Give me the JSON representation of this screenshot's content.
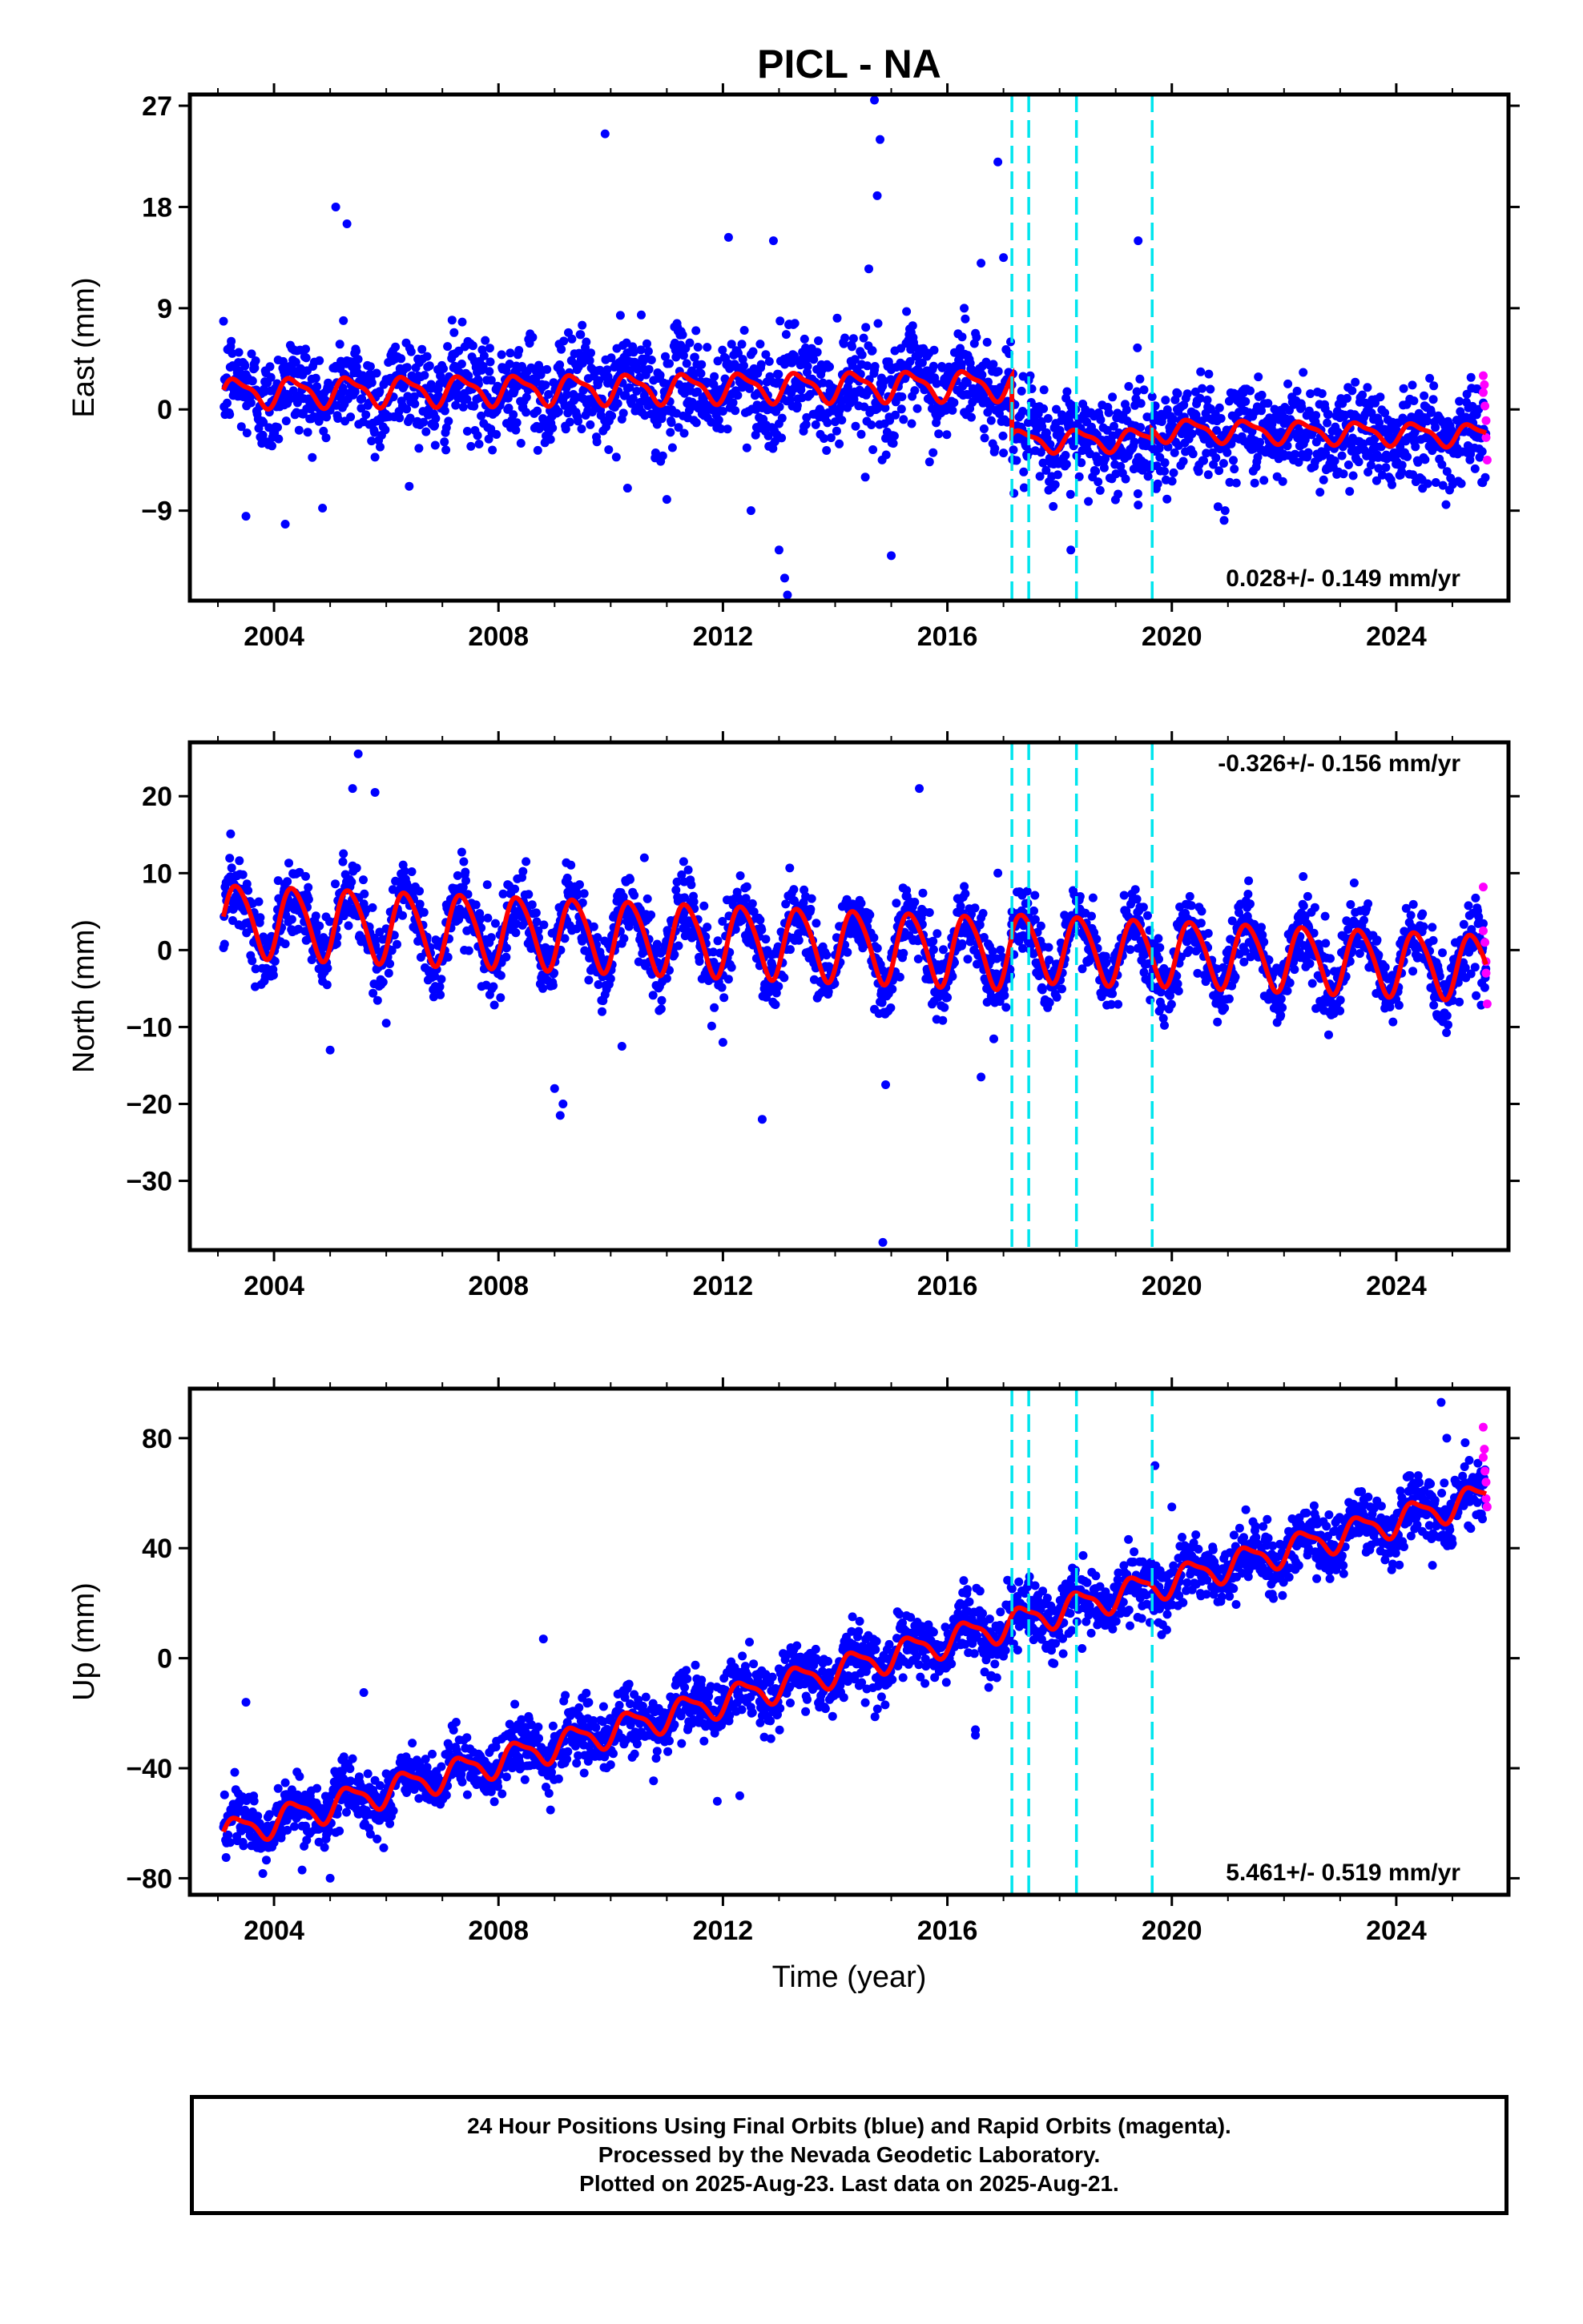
{
  "title": "PICL - NA",
  "colors": {
    "final": "#0000ff",
    "rapid": "#ff00ff",
    "model": "#ff0000",
    "event": "#00e5ee",
    "frame": "#000000"
  },
  "event_lines": [
    2017.15,
    2017.45,
    2018.3,
    2019.65
  ],
  "chart_data": [
    {
      "type": "scatter",
      "component": "east",
      "xlim": [
        2002.5,
        2026.0
      ],
      "ylim": [
        -17,
        28
      ],
      "yticks": [
        -9,
        0,
        9,
        18,
        27
      ],
      "xticks": [
        2004,
        2008,
        2012,
        2016,
        2020,
        2024
      ],
      "ylabel": "East (mm)",
      "rate_label": "0.028+/- 0.149 mm/yr",
      "rate_position": "bottom-right",
      "model": {
        "segments": [
          {
            "x_start": 2003.1,
            "x_end": 2017.15,
            "offset": 1.5,
            "trend": 0.05,
            "annual_amp": 1.2,
            "semiannual_amp": 0.4
          },
          {
            "x_start": 2017.15,
            "x_end": 2019.65,
            "offset": -2.8,
            "trend": 0.05,
            "annual_amp": 0.9,
            "semiannual_amp": 0.3
          },
          {
            "x_start": 2019.65,
            "x_end": 2025.6,
            "offset": -1.8,
            "trend": -0.08,
            "annual_amp": 0.9,
            "semiannual_amp": 0.3
          }
        ]
      },
      "scatter_sigma": 2.2,
      "outliers": [
        [
          2003.5,
          -9.5
        ],
        [
          2004.2,
          -10.2
        ],
        [
          2005.1,
          18.0
        ],
        [
          2005.3,
          16.5
        ],
        [
          2009.9,
          24.5
        ],
        [
          2012.1,
          15.3
        ],
        [
          2012.9,
          15.0
        ],
        [
          2013.0,
          -12.5
        ],
        [
          2013.1,
          -15.0
        ],
        [
          2013.15,
          -16.5
        ],
        [
          2014.7,
          27.5
        ],
        [
          2014.8,
          24.0
        ],
        [
          2014.75,
          19.0
        ],
        [
          2014.6,
          12.5
        ],
        [
          2015.0,
          -13.0
        ],
        [
          2016.9,
          22.0
        ],
        [
          2016.6,
          13.0
        ],
        [
          2017.0,
          13.5
        ],
        [
          2018.2,
          -12.5
        ],
        [
          2019.4,
          15.0
        ],
        [
          2019.4,
          -8.5
        ],
        [
          2010.3,
          -7.0
        ],
        [
          2011.0,
          -8.0
        ],
        [
          2012.5,
          -9.0
        ],
        [
          2016.3,
          9.0
        ]
      ],
      "rapid_points": [
        [
          2025.55,
          3.0
        ],
        [
          2025.55,
          1.5
        ],
        [
          2025.58,
          0.3
        ],
        [
          2025.6,
          -1.0
        ],
        [
          2025.6,
          -2.5
        ],
        [
          2025.62,
          -4.5
        ],
        [
          2025.57,
          2.2
        ]
      ]
    },
    {
      "type": "scatter",
      "component": "north",
      "xlim": [
        2002.5,
        2026.0
      ],
      "ylim": [
        -39,
        27
      ],
      "yticks": [
        -30,
        -20,
        -10,
        0,
        10,
        20
      ],
      "xticks": [
        2004,
        2008,
        2012,
        2016,
        2020,
        2024
      ],
      "ylabel": "North (mm)",
      "rate_label": "-0.326+/- 0.156 mm/yr",
      "rate_position": "top-right",
      "model": {
        "segments": [
          {
            "x_start": 2003.1,
            "x_end": 2017.15,
            "offset": 4.0,
            "trend": -0.3,
            "annual_amp": 4.6,
            "semiannual_amp": 0.6
          },
          {
            "x_start": 2017.15,
            "x_end": 2019.65,
            "offset": 0.5,
            "trend": -0.33,
            "annual_amp": 4.3,
            "semiannual_amp": 0.5
          },
          {
            "x_start": 2019.65,
            "x_end": 2025.6,
            "offset": -0.2,
            "trend": -0.33,
            "annual_amp": 4.2,
            "semiannual_amp": 0.5
          }
        ]
      },
      "scatter_sigma": 2.3,
      "outliers": [
        [
          2005.5,
          25.5
        ],
        [
          2005.4,
          21.0
        ],
        [
          2005.8,
          20.5
        ],
        [
          2005.0,
          -13.0
        ],
        [
          2009.1,
          -21.5
        ],
        [
          2009.15,
          -20.0
        ],
        [
          2009.0,
          -18.0
        ],
        [
          2012.7,
          -22.0
        ],
        [
          2014.85,
          -38.0
        ],
        [
          2015.5,
          21.0
        ],
        [
          2014.9,
          -17.5
        ],
        [
          2016.6,
          -16.5
        ],
        [
          2012.0,
          -12.0
        ],
        [
          2010.2,
          -12.5
        ],
        [
          2006.0,
          -9.5
        ],
        [
          2011.3,
          11.5
        ],
        [
          2010.6,
          12.0
        ],
        [
          2007.8,
          8.5
        ],
        [
          2016.9,
          10.0
        ]
      ],
      "rapid_points": [
        [
          2025.55,
          8.2
        ],
        [
          2025.55,
          2.5
        ],
        [
          2025.58,
          1.0
        ],
        [
          2025.6,
          -1.5
        ],
        [
          2025.6,
          -3.0
        ],
        [
          2025.62,
          -7.0
        ]
      ]
    },
    {
      "type": "scatter",
      "component": "up",
      "xlim": [
        2002.5,
        2026.0
      ],
      "ylim": [
        -86,
        98
      ],
      "yticks": [
        -80,
        -40,
        0,
        40,
        80
      ],
      "xticks": [
        2004,
        2008,
        2012,
        2016,
        2020,
        2024
      ],
      "ylabel": "Up (mm)",
      "xlabel": "Time (year)",
      "rate_label": "5.461+/- 0.519 mm/yr",
      "rate_position": "bottom-right",
      "model": {
        "segments": [
          {
            "x_start": 2003.1,
            "x_end": 2025.6,
            "offset": -64.0,
            "trend": 5.46,
            "annual_amp": 5.0,
            "semiannual_amp": 1.5,
            "ref_year": 2003.1
          }
        ]
      },
      "scatter_sigma": 5.5,
      "outliers": [
        [
          2003.5,
          -16.0
        ],
        [
          2005.6,
          -12.5
        ],
        [
          2008.8,
          7.0
        ],
        [
          2014.5,
          2.0
        ],
        [
          2016.5,
          -28.0
        ],
        [
          2016.5,
          -26.0
        ],
        [
          2019.7,
          70.0
        ],
        [
          2020.0,
          55.0
        ],
        [
          2024.8,
          93.0
        ],
        [
          2024.9,
          80.0
        ],
        [
          2012.3,
          -50.0
        ],
        [
          2011.9,
          -52.0
        ],
        [
          2005.0,
          -80.0
        ],
        [
          2004.5,
          -77.0
        ]
      ],
      "rapid_points": [
        [
          2025.55,
          84.0
        ],
        [
          2025.55,
          73.0
        ],
        [
          2025.58,
          68.0
        ],
        [
          2025.6,
          64.0
        ],
        [
          2025.6,
          58.0
        ],
        [
          2025.62,
          55.0
        ],
        [
          2025.57,
          76.0
        ]
      ]
    }
  ],
  "footer": {
    "line1": "24 Hour Positions Using Final Orbits (blue) and Rapid Orbits (magenta).",
    "line2": "Processed by the Nevada Geodetic Laboratory.",
    "line3": "Plotted on 2025-Aug-23. Last data on 2025-Aug-21."
  }
}
